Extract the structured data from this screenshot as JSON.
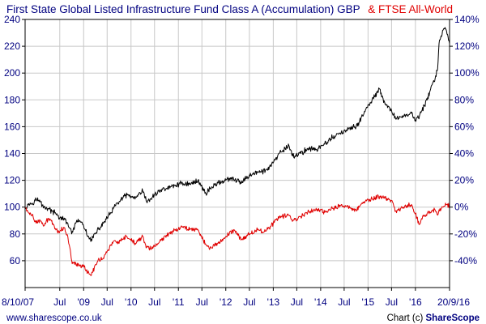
{
  "colors": {
    "fund_series": "#000000",
    "index_series": "#e00000",
    "axis_blue": "#000080",
    "grid": "#c8c8c8",
    "frame": "#000000"
  },
  "footer": {
    "left": "www.sharescope.co.uk",
    "right_prefix": "Chart (c) ",
    "right_brand": "ShareScope"
  },
  "chart_data": {
    "type": "line",
    "title": "",
    "series": [
      {
        "name": "First State Global Listed Infrastructure Fund Class A (Accumulation) GBP",
        "color": "#000000",
        "axis": "left",
        "points": [
          [
            "2007-10-08",
            100
          ],
          [
            "2007-11-01",
            102
          ],
          [
            "2007-12-01",
            103
          ],
          [
            "2008-01-01",
            106
          ],
          [
            "2008-02-01",
            104
          ],
          [
            "2008-03-01",
            100
          ],
          [
            "2008-04-01",
            99
          ],
          [
            "2008-05-01",
            97
          ],
          [
            "2008-06-01",
            95
          ],
          [
            "2008-07-01",
            92
          ],
          [
            "2008-08-01",
            91
          ],
          [
            "2008-09-01",
            88
          ],
          [
            "2008-10-01",
            80
          ],
          [
            "2008-11-01",
            88
          ],
          [
            "2008-12-01",
            90
          ],
          [
            "2009-01-01",
            86
          ],
          [
            "2009-02-01",
            78
          ],
          [
            "2009-03-01",
            76
          ],
          [
            "2009-04-01",
            80
          ],
          [
            "2009-05-01",
            84
          ],
          [
            "2009-06-01",
            88
          ],
          [
            "2009-07-01",
            92
          ],
          [
            "2009-08-01",
            96
          ],
          [
            "2009-09-01",
            101
          ],
          [
            "2009-10-01",
            104
          ],
          [
            "2009-11-01",
            107
          ],
          [
            "2009-12-01",
            109
          ],
          [
            "2010-01-01",
            108
          ],
          [
            "2010-02-01",
            106
          ],
          [
            "2010-04-01",
            112
          ],
          [
            "2010-05-01",
            104
          ],
          [
            "2010-06-01",
            106
          ],
          [
            "2010-08-01",
            112
          ],
          [
            "2010-10-01",
            114
          ],
          [
            "2010-12-01",
            116
          ],
          [
            "2011-02-01",
            118
          ],
          [
            "2011-04-01",
            117
          ],
          [
            "2011-06-01",
            120
          ],
          [
            "2011-08-01",
            110
          ],
          [
            "2011-09-01",
            114
          ],
          [
            "2011-11-01",
            118
          ],
          [
            "2012-01-01",
            120
          ],
          [
            "2012-03-01",
            121
          ],
          [
            "2012-05-01",
            118
          ],
          [
            "2012-07-01",
            124
          ],
          [
            "2012-09-01",
            126
          ],
          [
            "2012-11-01",
            127
          ],
          [
            "2013-01-01",
            133
          ],
          [
            "2013-03-01",
            141
          ],
          [
            "2013-05-01",
            146
          ],
          [
            "2013-06-01",
            138
          ],
          [
            "2013-08-01",
            140
          ],
          [
            "2013-10-01",
            144
          ],
          [
            "2013-12-01",
            143
          ],
          [
            "2014-02-01",
            147
          ],
          [
            "2014-04-01",
            152
          ],
          [
            "2014-06-01",
            155
          ],
          [
            "2014-08-01",
            158
          ],
          [
            "2014-10-01",
            160
          ],
          [
            "2014-12-01",
            170
          ],
          [
            "2015-02-01",
            180
          ],
          [
            "2015-04-01",
            188
          ],
          [
            "2015-05-01",
            178
          ],
          [
            "2015-07-01",
            172
          ],
          [
            "2015-08-01",
            166
          ],
          [
            "2015-10-01",
            168
          ],
          [
            "2015-12-01",
            170
          ],
          [
            "2016-01-01",
            165
          ],
          [
            "2016-02-01",
            168
          ],
          [
            "2016-04-01",
            180
          ],
          [
            "2016-05-01",
            190
          ],
          [
            "2016-06-01",
            196
          ],
          [
            "2016-06-20",
            203
          ],
          [
            "2016-07-01",
            222
          ],
          [
            "2016-08-01",
            232
          ],
          [
            "2016-08-20",
            233
          ],
          [
            "2016-09-20",
            222
          ]
        ]
      },
      {
        "name": "& FTSE All-World",
        "color": "#e00000",
        "axis": "right",
        "points": [
          [
            "2007-10-08",
            0
          ],
          [
            "2007-11-01",
            -4
          ],
          [
            "2007-12-01",
            -6
          ],
          [
            "2008-01-01",
            -12
          ],
          [
            "2008-02-01",
            -10
          ],
          [
            "2008-03-01",
            -14
          ],
          [
            "2008-04-01",
            -9
          ],
          [
            "2008-05-01",
            -10
          ],
          [
            "2008-06-01",
            -17
          ],
          [
            "2008-07-01",
            -18
          ],
          [
            "2008-08-01",
            -15
          ],
          [
            "2008-09-01",
            -22
          ],
          [
            "2008-10-01",
            -40
          ],
          [
            "2008-11-01",
            -42
          ],
          [
            "2008-12-01",
            -44
          ],
          [
            "2009-01-01",
            -43
          ],
          [
            "2009-02-01",
            -49
          ],
          [
            "2009-03-01",
            -51
          ],
          [
            "2009-04-01",
            -43
          ],
          [
            "2009-05-01",
            -39
          ],
          [
            "2009-06-01",
            -38
          ],
          [
            "2009-07-01",
            -33
          ],
          [
            "2009-08-01",
            -28
          ],
          [
            "2009-09-01",
            -25
          ],
          [
            "2009-10-01",
            -27
          ],
          [
            "2009-11-01",
            -24
          ],
          [
            "2009-12-01",
            -22
          ],
          [
            "2010-01-01",
            -25
          ],
          [
            "2010-02-01",
            -27
          ],
          [
            "2010-04-01",
            -22
          ],
          [
            "2010-05-01",
            -30
          ],
          [
            "2010-06-01",
            -31
          ],
          [
            "2010-08-01",
            -27
          ],
          [
            "2010-10-01",
            -21
          ],
          [
            "2010-12-01",
            -17
          ],
          [
            "2011-02-01",
            -15
          ],
          [
            "2011-04-01",
            -16
          ],
          [
            "2011-06-01",
            -17
          ],
          [
            "2011-08-01",
            -28
          ],
          [
            "2011-09-01",
            -31
          ],
          [
            "2011-11-01",
            -27
          ],
          [
            "2012-01-01",
            -22
          ],
          [
            "2012-03-01",
            -17
          ],
          [
            "2012-05-01",
            -24
          ],
          [
            "2012-07-01",
            -20
          ],
          [
            "2012-09-01",
            -17
          ],
          [
            "2012-11-01",
            -18
          ],
          [
            "2013-01-01",
            -12
          ],
          [
            "2013-03-01",
            -7
          ],
          [
            "2013-05-01",
            -6
          ],
          [
            "2013-06-01",
            -10
          ],
          [
            "2013-08-01",
            -7
          ],
          [
            "2013-10-01",
            -3
          ],
          [
            "2013-12-01",
            -2
          ],
          [
            "2014-02-01",
            -4
          ],
          [
            "2014-04-01",
            -1
          ],
          [
            "2014-06-01",
            1
          ],
          [
            "2014-08-01",
            0
          ],
          [
            "2014-10-01",
            -2
          ],
          [
            "2014-12-01",
            4
          ],
          [
            "2015-02-01",
            6
          ],
          [
            "2015-04-01",
            8
          ],
          [
            "2015-05-01",
            7
          ],
          [
            "2015-07-01",
            5
          ],
          [
            "2015-08-01",
            -3
          ],
          [
            "2015-10-01",
            0
          ],
          [
            "2015-12-01",
            2
          ],
          [
            "2016-01-01",
            -5
          ],
          [
            "2016-02-01",
            -13
          ],
          [
            "2016-03-01",
            -6
          ],
          [
            "2016-05-01",
            -4
          ],
          [
            "2016-06-01",
            -2
          ],
          [
            "2016-06-20",
            -6
          ],
          [
            "2016-07-01",
            -2
          ],
          [
            "2016-08-01",
            0
          ],
          [
            "2016-08-20",
            3
          ],
          [
            "2016-09-20",
            1
          ]
        ]
      }
    ],
    "x_range": [
      "2007-10-08",
      "2016-09-20"
    ],
    "x_ticks": [
      {
        "label": "8/10/07",
        "date": "2007-10-08"
      },
      {
        "label": "Jul",
        "date": "2008-07-01"
      },
      {
        "label": "'09",
        "date": "2009-01-01"
      },
      {
        "label": "Jul",
        "date": "2009-07-01"
      },
      {
        "label": "'10",
        "date": "2010-01-01"
      },
      {
        "label": "Jul",
        "date": "2010-07-01"
      },
      {
        "label": "'11",
        "date": "2011-01-01"
      },
      {
        "label": "Jul",
        "date": "2011-07-01"
      },
      {
        "label": "'12",
        "date": "2012-01-01"
      },
      {
        "label": "Jul",
        "date": "2012-07-01"
      },
      {
        "label": "'13",
        "date": "2013-01-01"
      },
      {
        "label": "Jul",
        "date": "2013-07-01"
      },
      {
        "label": "'14",
        "date": "2014-01-01"
      },
      {
        "label": "Jul",
        "date": "2014-07-01"
      },
      {
        "label": "'15",
        "date": "2015-01-01"
      },
      {
        "label": "Jul",
        "date": "2015-07-01"
      },
      {
        "label": "'16",
        "date": "2016-01-01"
      },
      {
        "label": "20/9/16",
        "date": "2016-09-20"
      }
    ],
    "y_left": {
      "range": [
        40,
        240
      ],
      "ticks": [
        60,
        80,
        100,
        120,
        140,
        160,
        180,
        200,
        220,
        240
      ]
    },
    "y_right": {
      "range": [
        -60,
        140
      ],
      "ticks": [
        -40,
        -20,
        0,
        20,
        40,
        60,
        80,
        100,
        120,
        140
      ],
      "tick_labels": [
        "-40%",
        "-20%",
        "0%",
        "20%",
        "40%",
        "60%",
        "80%",
        "100%",
        "120%",
        "140%"
      ]
    },
    "grid": true
  }
}
